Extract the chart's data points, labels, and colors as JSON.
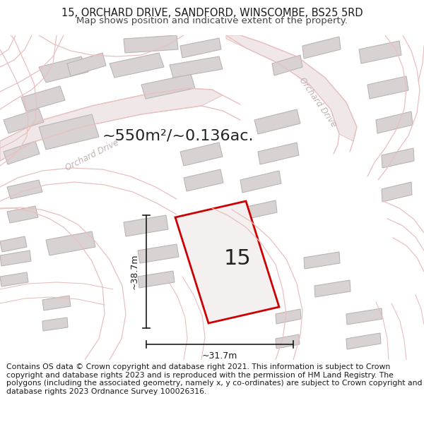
{
  "title": "15, ORCHARD DRIVE, SANDFORD, WINSCOMBE, BS25 5RD",
  "subtitle": "Map shows position and indicative extent of the property.",
  "area_label": "~550m²/~0.136ac.",
  "number_label": "15",
  "dim_h": "~38.7m",
  "dim_w": "~31.7m",
  "road_label_left": "Orchard Drive",
  "road_label_right": "Orchard Drive",
  "footnote": "Contains OS data © Crown copyright and database right 2021. This information is subject to Crown copyright and database rights 2023 and is reproduced with the permission of HM Land Registry. The polygons (including the associated geometry, namely x, y co-ordinates) are subject to Crown copyright and database rights 2023 Ordnance Survey 100026316.",
  "map_bg": "#f7f2f2",
  "road_color": "#e8c0c0",
  "road_fill": "#f0e8e8",
  "building_color": "#d8d2d2",
  "building_edge": "#bbb5b5",
  "plot_fill": "#f5f0f0",
  "plot_edge": "#cc0000",
  "title_fontsize": 10.5,
  "subtitle_fontsize": 9.5,
  "area_fontsize": 16,
  "number_fontsize": 22,
  "footnote_fontsize": 7.8,
  "road_label_color": "#c0b0b0",
  "dim_color": "#1a1a1a"
}
